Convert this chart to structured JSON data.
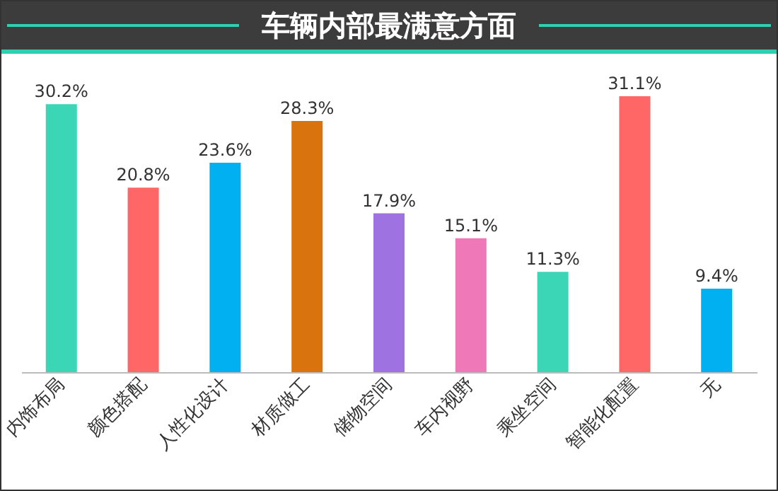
{
  "chart_data": {
    "type": "bar",
    "title": "车辆内部最满意方面",
    "categories": [
      "内饰布局",
      "颜色搭配",
      "人性化设计",
      "材质做工",
      "储物空间",
      "车内视野",
      "乘坐空间",
      "智能化配置",
      "无"
    ],
    "values": [
      30.2,
      20.8,
      23.6,
      28.3,
      17.9,
      15.1,
      11.3,
      31.1,
      9.4
    ],
    "colors": [
      "#3ad6b6",
      "#ff6666",
      "#00b0f0",
      "#d9730d",
      "#9e72e0",
      "#ef78b8",
      "#3ad6b6",
      "#ff6666",
      "#00b0f0"
    ],
    "value_labels": [
      "30.2%",
      "20.8%",
      "23.6%",
      "28.3%",
      "17.9%",
      "15.1%",
      "11.3%",
      "31.1%",
      "9.4%"
    ],
    "grid": false
  }
}
